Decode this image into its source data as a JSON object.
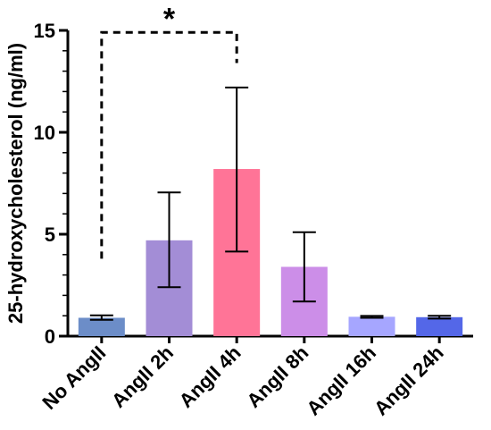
{
  "chart_data": {
    "type": "bar",
    "ylabel": "25-hydroxycholesterol (ng/ml)",
    "xlabel": "",
    "ylim": [
      0,
      15
    ],
    "yticks": [
      0,
      5,
      10,
      15
    ],
    "yminor_step": 1,
    "grid": false,
    "categories": [
      "No AngII",
      "AngII 2h",
      "AngII 4h",
      "AngII 8h",
      "AngII 16h",
      "AngII 24h"
    ],
    "values": [
      0.9,
      4.7,
      8.2,
      3.4,
      0.95,
      0.93
    ],
    "error_low": [
      0.8,
      2.4,
      4.15,
      1.7,
      0.9,
      0.86
    ],
    "error_high": [
      1.02,
      7.05,
      12.2,
      5.1,
      0.99,
      1.0
    ],
    "colors": [
      "#6c8dc8",
      "#a38dd6",
      "#ff7497",
      "#cc8ee8",
      "#a6a6ff",
      "#5467e8"
    ],
    "annotation": {
      "label": "*",
      "from_category": "No AngII",
      "to_category": "AngII 4h",
      "bracket_level": 14.9,
      "left_bottom": 3.8,
      "right_bottom": 13.4
    }
  }
}
